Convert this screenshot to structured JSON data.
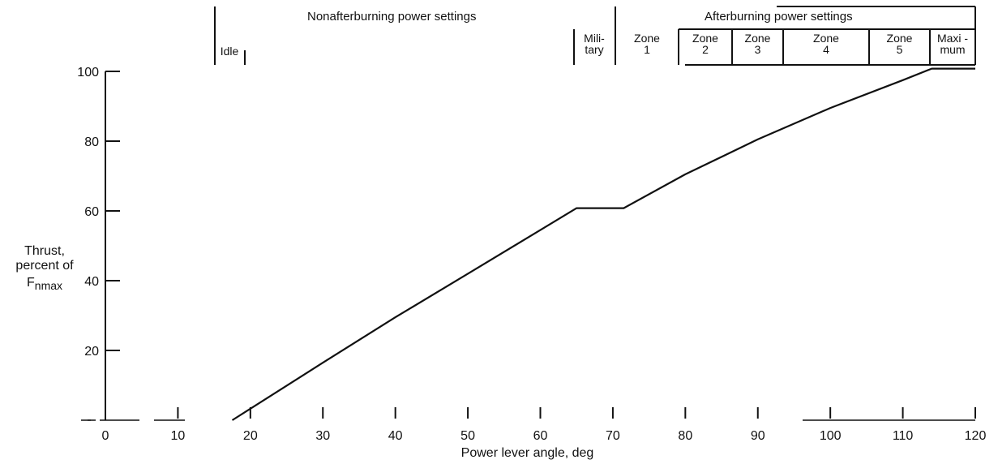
{
  "chart_data": {
    "type": "line",
    "xlabel": "Power lever angle, deg",
    "ylabel_lines": [
      "Thrust,",
      "percent of"
    ],
    "ylabel_symbol": "F",
    "ylabel_sub": "n",
    "ylabel_subsub": "max",
    "xlim": [
      0,
      120
    ],
    "ylim": [
      0,
      100
    ],
    "xticks": [
      0,
      10,
      20,
      30,
      40,
      50,
      60,
      70,
      80,
      90,
      100,
      110,
      120
    ],
    "yticks": [
      20,
      40,
      60,
      80,
      100
    ],
    "series": [
      {
        "x": [
          17.5,
          30,
          40,
          50,
          60,
          65,
          71.5,
          80,
          90,
          100,
          110,
          114,
          120
        ],
        "y": [
          0,
          16.5,
          29.5,
          42,
          54.5,
          60.8,
          60.8,
          70.5,
          80.5,
          89.5,
          97.5,
          100.8,
          100.8
        ]
      }
    ],
    "header": {
      "nonafterburning": "Nonafterburning power settings",
      "afterburning": "Afterburning power settings"
    },
    "settings": [
      {
        "label1": "Idle",
        "label2": ""
      },
      {
        "label1": "Mili-",
        "label2": "tary"
      },
      {
        "label1": "Zone",
        "label2": "1"
      },
      {
        "label1": "Zone",
        "label2": "2"
      },
      {
        "label1": "Zone",
        "label2": "3"
      },
      {
        "label1": "Zone",
        "label2": "4"
      },
      {
        "label1": "Zone",
        "label2": "5"
      },
      {
        "label1": "Maxi -",
        "label2": "mum"
      }
    ]
  }
}
